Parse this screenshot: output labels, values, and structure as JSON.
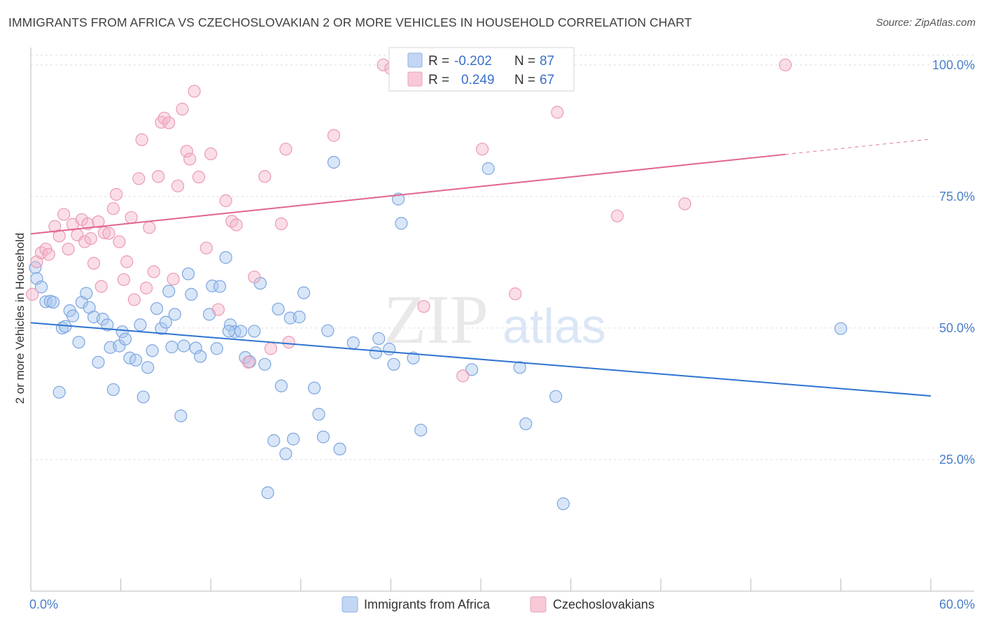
{
  "title": "IMMIGRANTS FROM AFRICA VS CZECHOSLOVAKIAN 2 OR MORE VEHICLES IN HOUSEHOLD CORRELATION CHART",
  "source": "Source: ZipAtlas.com",
  "watermark": {
    "zip": "ZIP",
    "atlas": "atlas"
  },
  "colors": {
    "blue": "#a9c7ef",
    "blue_line": "#2f74d0",
    "pink": "#f4b6c9",
    "pink_line": "#e0648e",
    "axis_text": "#4a7fc9",
    "grid": "#dddddd"
  },
  "legend": {
    "series": [
      {
        "r_label": "R =",
        "r_value": "-0.202",
        "n_label": "N =",
        "n_value": "87"
      },
      {
        "r_label": "R =",
        "r_value": "0.249",
        "n_label": "N =",
        "n_value": "67"
      }
    ]
  },
  "chart_data": {
    "type": "scatter",
    "title": "IMMIGRANTS FROM AFRICA VS CZECHOSLOVAKIAN 2 OR MORE VEHICLES IN HOUSEHOLD CORRELATION CHART",
    "xlabel": "",
    "ylabel": "2 or more Vehicles in Household",
    "xlim": [
      0,
      60
    ],
    "ylim": [
      0,
      103.3
    ],
    "x_ticks": [
      {
        "value": 0,
        "label": "0.0%"
      },
      {
        "value": 60,
        "label": "60.0%"
      }
    ],
    "y_ticks": [
      {
        "value": 25,
        "label": "25.0%"
      },
      {
        "value": 50,
        "label": "50.0%"
      },
      {
        "value": 75,
        "label": "75.0%"
      },
      {
        "value": 100,
        "label": "100.0%"
      }
    ],
    "grid": true,
    "series": [
      {
        "name": "Immigrants from Africa",
        "color": "#a9c7ef",
        "trend": {
          "x": [
            0,
            60
          ],
          "y": [
            51.0,
            37.1
          ]
        },
        "points": [
          [
            0.3,
            61.5
          ],
          [
            0.4,
            59.4
          ],
          [
            0.7,
            57.8
          ],
          [
            1.0,
            55.0
          ],
          [
            1.3,
            55.1
          ],
          [
            1.5,
            54.9
          ],
          [
            1.9,
            37.8
          ],
          [
            2.1,
            50.0
          ],
          [
            2.3,
            50.3
          ],
          [
            2.6,
            53.3
          ],
          [
            2.8,
            52.3
          ],
          [
            3.2,
            47.3
          ],
          [
            3.4,
            54.9
          ],
          [
            3.7,
            56.6
          ],
          [
            3.9,
            53.9
          ],
          [
            4.2,
            52.1
          ],
          [
            4.5,
            43.5
          ],
          [
            4.8,
            51.7
          ],
          [
            5.1,
            50.6
          ],
          [
            5.3,
            46.3
          ],
          [
            5.5,
            38.3
          ],
          [
            5.9,
            46.6
          ],
          [
            6.1,
            49.3
          ],
          [
            6.3,
            47.9
          ],
          [
            6.6,
            44.3
          ],
          [
            7.0,
            43.9
          ],
          [
            7.3,
            50.6
          ],
          [
            7.5,
            36.9
          ],
          [
            7.8,
            42.5
          ],
          [
            8.1,
            45.7
          ],
          [
            8.4,
            53.7
          ],
          [
            8.7,
            49.9
          ],
          [
            9.0,
            51.1
          ],
          [
            9.2,
            57.0
          ],
          [
            9.4,
            46.4
          ],
          [
            9.6,
            52.6
          ],
          [
            10.0,
            33.3
          ],
          [
            10.2,
            46.6
          ],
          [
            10.5,
            60.3
          ],
          [
            10.7,
            56.4
          ],
          [
            11.0,
            46.2
          ],
          [
            11.3,
            44.6
          ],
          [
            11.9,
            52.6
          ],
          [
            12.1,
            58.0
          ],
          [
            12.4,
            46.1
          ],
          [
            12.6,
            57.9
          ],
          [
            13.0,
            63.4
          ],
          [
            13.3,
            50.6
          ],
          [
            13.6,
            49.3
          ],
          [
            14.0,
            49.4
          ],
          [
            14.3,
            44.4
          ],
          [
            14.6,
            43.6
          ],
          [
            14.9,
            49.4
          ],
          [
            15.3,
            58.5
          ],
          [
            15.6,
            43.1
          ],
          [
            15.8,
            18.7
          ],
          [
            16.2,
            28.6
          ],
          [
            16.5,
            53.6
          ],
          [
            16.7,
            39.0
          ],
          [
            17.0,
            26.1
          ],
          [
            17.3,
            51.9
          ],
          [
            17.5,
            28.9
          ],
          [
            17.9,
            52.1
          ],
          [
            18.2,
            56.7
          ],
          [
            18.9,
            38.6
          ],
          [
            19.2,
            33.6
          ],
          [
            19.5,
            29.3
          ],
          [
            19.8,
            49.5
          ],
          [
            20.2,
            81.5
          ],
          [
            20.6,
            27.0
          ],
          [
            21.5,
            47.2
          ],
          [
            23.0,
            45.3
          ],
          [
            23.2,
            48.0
          ],
          [
            23.9,
            46.0
          ],
          [
            24.2,
            43.1
          ],
          [
            24.5,
            74.5
          ],
          [
            24.7,
            69.9
          ],
          [
            25.5,
            44.3
          ],
          [
            26.0,
            30.6
          ],
          [
            29.4,
            42.1
          ],
          [
            30.5,
            80.3
          ],
          [
            32.6,
            42.5
          ],
          [
            33.0,
            31.8
          ],
          [
            35.0,
            37.0
          ],
          [
            35.5,
            16.6
          ],
          [
            54.0,
            49.9
          ],
          [
            13.2,
            49.4
          ]
        ]
      },
      {
        "name": "Czechoslovakians",
        "color": "#f4b6c9",
        "trend": {
          "x": [
            0,
            50.3
          ],
          "y": [
            67.9,
            83.0
          ]
        },
        "trend_dashed": {
          "x": [
            50.3,
            60
          ],
          "y": [
            83.0,
            85.9
          ]
        },
        "points": [
          [
            0.1,
            56.4
          ],
          [
            0.4,
            62.6
          ],
          [
            0.7,
            64.3
          ],
          [
            1.0,
            65.0
          ],
          [
            1.2,
            64.0
          ],
          [
            1.6,
            69.3
          ],
          [
            1.9,
            67.5
          ],
          [
            2.2,
            71.6
          ],
          [
            2.5,
            65.0
          ],
          [
            2.8,
            69.7
          ],
          [
            3.1,
            67.7
          ],
          [
            3.4,
            70.6
          ],
          [
            3.6,
            66.4
          ],
          [
            3.8,
            69.8
          ],
          [
            4.0,
            67.0
          ],
          [
            4.2,
            62.3
          ],
          [
            4.5,
            70.2
          ],
          [
            4.7,
            57.9
          ],
          [
            4.9,
            68.1
          ],
          [
            5.2,
            68.0
          ],
          [
            5.5,
            72.7
          ],
          [
            5.7,
            75.4
          ],
          [
            5.9,
            66.4
          ],
          [
            6.2,
            59.2
          ],
          [
            6.4,
            62.6
          ],
          [
            6.7,
            71.0
          ],
          [
            6.9,
            55.4
          ],
          [
            7.2,
            78.4
          ],
          [
            7.4,
            85.8
          ],
          [
            7.7,
            57.6
          ],
          [
            7.9,
            69.1
          ],
          [
            8.2,
            60.7
          ],
          [
            8.5,
            78.8
          ],
          [
            8.7,
            89.1
          ],
          [
            8.9,
            89.9
          ],
          [
            9.2,
            89.0
          ],
          [
            9.5,
            59.3
          ],
          [
            9.8,
            77.0
          ],
          [
            10.1,
            91.6
          ],
          [
            10.4,
            83.6
          ],
          [
            10.6,
            82.1
          ],
          [
            10.9,
            95.0
          ],
          [
            11.2,
            78.7
          ],
          [
            11.7,
            65.2
          ],
          [
            12.0,
            83.1
          ],
          [
            12.5,
            53.5
          ],
          [
            13.0,
            74.2
          ],
          [
            13.4,
            70.3
          ],
          [
            13.7,
            69.6
          ],
          [
            14.5,
            43.5
          ],
          [
            14.9,
            59.7
          ],
          [
            15.6,
            78.8
          ],
          [
            16.0,
            46.1
          ],
          [
            16.7,
            69.8
          ],
          [
            17.0,
            84.0
          ],
          [
            17.2,
            47.3
          ],
          [
            20.2,
            86.6
          ],
          [
            23.5,
            100.0
          ],
          [
            24.0,
            99.3
          ],
          [
            26.2,
            54.1
          ],
          [
            28.8,
            40.9
          ],
          [
            30.1,
            84.0
          ],
          [
            32.3,
            56.5
          ],
          [
            35.1,
            91.0
          ],
          [
            39.1,
            71.3
          ],
          [
            43.6,
            73.6
          ],
          [
            50.3,
            100.0
          ]
        ]
      }
    ]
  }
}
